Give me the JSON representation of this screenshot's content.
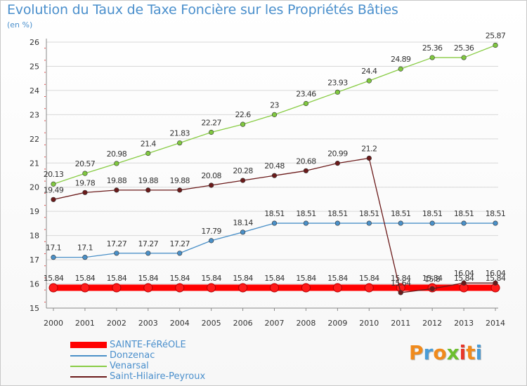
{
  "title": "Evolution du Taux de Taxe Foncière sur les Propriétés Bâties",
  "subtitle": "(en %)",
  "logo": {
    "letters": [
      "P",
      "r",
      "o",
      "x",
      "i",
      "t",
      "i"
    ],
    "colors": [
      "#f08a1c",
      "#4a9cd6",
      "#f08a1c",
      "#6cbf2e",
      "#e8372a",
      "#f08a1c",
      "#4a9cd6"
    ]
  },
  "chart_data": {
    "type": "line",
    "x": [
      "2000",
      "2001",
      "2002",
      "2003",
      "2004",
      "2005",
      "2006",
      "2007",
      "2008",
      "2009",
      "2010",
      "2011",
      "2012",
      "2013",
      "2014"
    ],
    "ylim": [
      15,
      26
    ],
    "yticks": [
      "15",
      "16",
      "17",
      "18",
      "19",
      "20",
      "21",
      "22",
      "23",
      "24",
      "25",
      "26"
    ],
    "grid": true,
    "legend_position": "bottom-left",
    "series": [
      {
        "name": "SAINTE-FéRéOLE",
        "color": "#ff0000",
        "values": [
          15.84,
          15.84,
          15.84,
          15.84,
          15.84,
          15.84,
          15.84,
          15.84,
          15.84,
          15.84,
          15.84,
          15.84,
          15.84,
          15.84,
          15.84
        ],
        "labels": [
          "15.84",
          "15.84",
          "15.84",
          "15.84",
          "15.84",
          "15.84",
          "15.84",
          "15.84",
          "15.84",
          "15.84",
          "15.84",
          "15.84",
          "15.84",
          "15.84",
          "15.84"
        ]
      },
      {
        "name": "Donzenac",
        "color": "#4a90c8",
        "values": [
          17.1,
          17.1,
          17.27,
          17.27,
          17.27,
          17.79,
          18.14,
          18.51,
          18.51,
          18.51,
          18.51,
          18.51,
          18.51,
          18.51,
          18.51
        ],
        "labels": [
          "17.1",
          "17.1",
          "17.27",
          "17.27",
          "17.27",
          "17.79",
          "18.14",
          "18.51",
          "18.51",
          "18.51",
          "18.51",
          "18.51",
          "18.51",
          "18.51",
          "18.51"
        ]
      },
      {
        "name": "Venarsal",
        "color": "#88cc44",
        "values": [
          20.13,
          20.57,
          20.98,
          21.4,
          21.83,
          22.27,
          22.6,
          23,
          23.46,
          23.93,
          24.4,
          24.89,
          25.36,
          25.36,
          25.87
        ],
        "labels": [
          "20.13",
          "20.57",
          "20.98",
          "21.4",
          "21.83",
          "22.27",
          "22.6",
          "23",
          "23.46",
          "23.93",
          "24.4",
          "24.89",
          "25.36",
          "25.36",
          "25.87"
        ]
      },
      {
        "name": "Saint-Hilaire-Peyroux",
        "color": "#6b1a1a",
        "values": [
          19.49,
          19.78,
          19.88,
          19.88,
          19.88,
          20.08,
          20.28,
          20.48,
          20.68,
          20.99,
          21.2,
          15.64,
          15.8,
          16.04,
          16.04
        ],
        "labels": [
          "19.49",
          "19.78",
          "19.88",
          "19.88",
          "19.88",
          "20.08",
          "20.28",
          "20.48",
          "20.68",
          "20.99",
          "21.2",
          "15.64",
          "15.8",
          "16.04",
          "16.04"
        ]
      }
    ]
  }
}
